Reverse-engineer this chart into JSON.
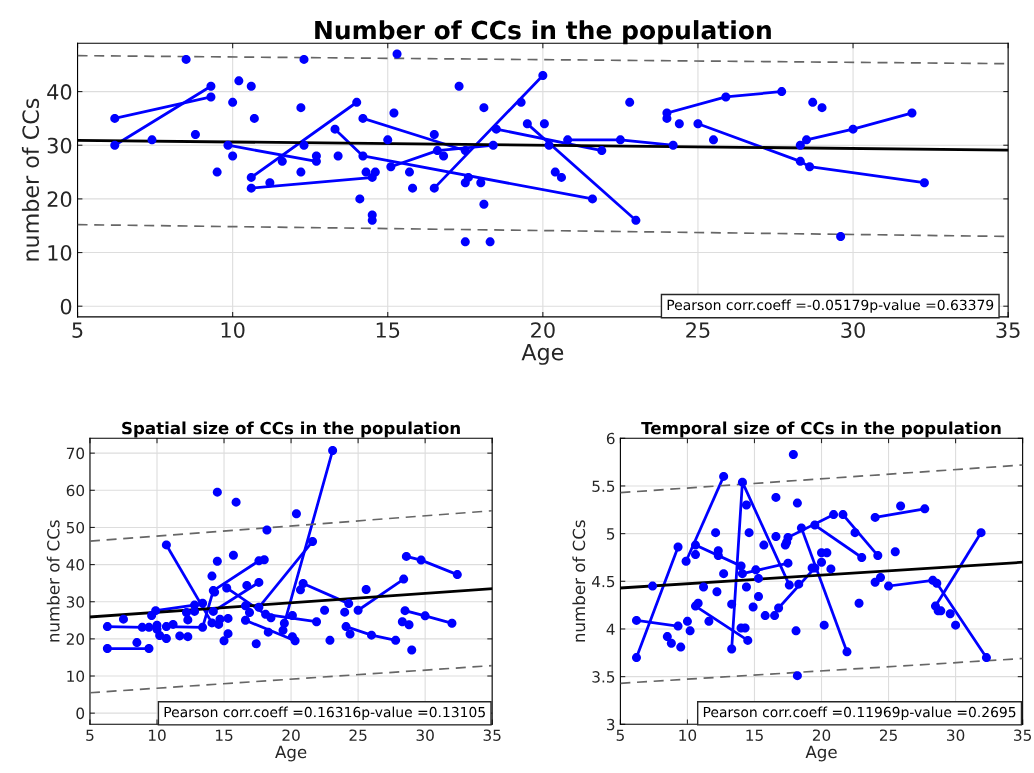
{
  "chart_data": [
    {
      "type": "scatter",
      "title": "Number of CCs in the population",
      "xlabel": "Age",
      "ylabel": "number of CCs",
      "xlim": [
        5,
        35
      ],
      "ylim": [
        -2,
        49
      ],
      "xticks": [
        5,
        10,
        15,
        20,
        25,
        30,
        35
      ],
      "yticks": [
        0,
        10,
        20,
        30,
        40
      ],
      "grid": true,
      "annotations": [
        "Pearson corr.coeff =-0.05179p-value =0.63379"
      ],
      "series": [
        {
          "type": "line",
          "color": "#0000ff",
          "line_style": "solid",
          "x": [
            6.2,
            9.3
          ],
          "values": [
            35,
            39
          ]
        },
        {
          "type": "line",
          "color": "#0000ff",
          "line_style": "solid",
          "x": [
            6.2,
            9.3
          ],
          "values": [
            30,
            41
          ]
        },
        {
          "type": "line",
          "color": "#0000ff",
          "line_style": "solid",
          "x": [
            9.85,
            12.7
          ],
          "values": [
            30,
            27
          ]
        },
        {
          "type": "line",
          "color": "#0000ff",
          "line_style": "solid",
          "x": [
            10.6,
            14
          ],
          "values": [
            24,
            38
          ]
        },
        {
          "type": "line",
          "color": "#0000ff",
          "line_style": "solid",
          "x": [
            10.6,
            14.5
          ],
          "values": [
            22,
            24
          ]
        },
        {
          "type": "line",
          "color": "#0000ff",
          "line_style": "solid",
          "x": [
            13.3,
            14.2,
            21.6
          ],
          "values": [
            33,
            28,
            20
          ]
        },
        {
          "type": "line",
          "color": "#0000ff",
          "line_style": "solid",
          "x": [
            14.2,
            17.5
          ],
          "values": [
            35,
            29
          ]
        },
        {
          "type": "line",
          "color": "#0000ff",
          "line_style": "solid",
          "x": [
            15.1,
            16.6,
            18.4
          ],
          "values": [
            26,
            29,
            30
          ]
        },
        {
          "type": "line",
          "color": "#0000ff",
          "line_style": "solid",
          "x": [
            16.5,
            20
          ],
          "values": [
            22,
            43
          ]
        },
        {
          "type": "line",
          "color": "#0000ff",
          "line_style": "solid",
          "x": [
            18.5,
            21.9
          ],
          "values": [
            33,
            29
          ]
        },
        {
          "type": "line",
          "color": "#0000ff",
          "line_style": "solid",
          "x": [
            20.8,
            22.5,
            24.2
          ],
          "values": [
            31,
            31,
            30
          ]
        },
        {
          "type": "line",
          "color": "#0000ff",
          "line_style": "solid",
          "x": [
            19.5,
            23
          ],
          "values": [
            34,
            16
          ]
        },
        {
          "type": "line",
          "color": "#0000ff",
          "line_style": "solid",
          "x": [
            24,
            25.9,
            27.7
          ],
          "values": [
            36,
            39,
            40
          ]
        },
        {
          "type": "line",
          "color": "#0000ff",
          "line_style": "solid",
          "x": [
            25,
            28.3,
            28.6,
            32.3
          ],
          "values": [
            34,
            27,
            26,
            23
          ]
        },
        {
          "type": "line",
          "color": "#0000ff",
          "line_style": "solid",
          "x": [
            28.3,
            28.5,
            30,
            31.9
          ],
          "values": [
            30,
            31,
            33,
            36
          ]
        },
        {
          "type": "scatter",
          "color": "#0000ff",
          "marker": "circle",
          "x": [
            6.2,
            6.2,
            7.4,
            8.5,
            8.8,
            9.3,
            9.3,
            9.5,
            10,
            10,
            9.85,
            10.2,
            10.6,
            10.7,
            10.6,
            10.6,
            11.2,
            11.6,
            12.2,
            12.3,
            12.2,
            12.3,
            12.7,
            12.7,
            13.4,
            13.3,
            14,
            14.1,
            14.2,
            14.2,
            14.3,
            14.5,
            14.5,
            14.5,
            14.6,
            15,
            15.2,
            15.3,
            15.1,
            15.7,
            15.8,
            16.5,
            16.6,
            16.8,
            16.5,
            17.3,
            17.5,
            17.6,
            17.5,
            17.5,
            18,
            18.1,
            18.1,
            18.3,
            18.4,
            18.5,
            19.3,
            19.5,
            20,
            20.05,
            20.2,
            20.4,
            20.6,
            20.8,
            21.6,
            21.9,
            22.5,
            22.8,
            23,
            24,
            24,
            24.2,
            24.4,
            25,
            25.5,
            25.9,
            27.7,
            28.3,
            28.3,
            28.5,
            28.6,
            28.7,
            29,
            29.6,
            30,
            31.9,
            32.3
          ],
          "values": [
            35,
            30,
            31,
            46,
            32,
            41,
            39,
            25,
            38,
            28,
            30,
            42,
            41,
            35,
            24,
            22,
            23,
            27,
            25,
            46,
            37,
            30,
            28,
            27,
            28,
            33,
            38,
            20,
            35,
            28,
            25,
            17,
            16,
            24,
            25,
            31,
            36,
            47,
            26,
            25,
            22,
            32,
            29,
            28,
            22,
            41,
            29,
            24,
            23,
            12,
            23,
            37,
            19,
            12,
            30,
            33,
            38,
            34,
            43,
            34,
            30,
            25,
            24,
            31,
            20,
            29,
            31,
            38,
            16,
            36,
            35,
            30,
            34,
            34,
            31,
            39,
            40,
            30,
            27,
            31,
            26,
            38,
            37,
            13,
            33,
            36,
            23
          ]
        },
        {
          "type": "line",
          "color": "#000000",
          "line_style": "solid",
          "x": [
            5,
            35
          ],
          "values": [
            30.9,
            29.1
          ]
        },
        {
          "type": "line",
          "color": "#666666",
          "line_style": "dashed",
          "x": [
            5,
            35
          ],
          "values": [
            46.7,
            45.2
          ]
        },
        {
          "type": "line",
          "color": "#666666",
          "line_style": "dashed",
          "x": [
            5,
            35
          ],
          "values": [
            15.2,
            13.0
          ]
        }
      ]
    },
    {
      "type": "scatter",
      "title": "Spatial size of CCs in the population",
      "xlabel": "Age",
      "ylabel": "number of CCs",
      "xlim": [
        5,
        35
      ],
      "ylim": [
        -3,
        74
      ],
      "xticks": [
        5,
        10,
        15,
        20,
        25,
        30,
        35
      ],
      "yticks": [
        0,
        10,
        20,
        30,
        40,
        50,
        60,
        70
      ],
      "grid": true,
      "annotations": [
        "Pearson corr.coeff =0.16316p-value =0.13105"
      ],
      "series": [
        {
          "type": "line",
          "color": "#0000ff",
          "line_style": "solid",
          "x": [
            6.3,
            8.9
          ],
          "values": [
            23.3,
            23.1
          ]
        },
        {
          "type": "line",
          "color": "#0000ff",
          "line_style": "solid",
          "x": [
            6.3,
            9.4
          ],
          "values": [
            17.4,
            17.4
          ]
        },
        {
          "type": "line",
          "color": "#0000ff",
          "line_style": "solid",
          "x": [
            9.9,
            12.8
          ],
          "values": [
            27.6,
            29.1
          ]
        },
        {
          "type": "line",
          "color": "#0000ff",
          "line_style": "solid",
          "x": [
            10.7,
            13.4,
            14.2,
            17.6
          ],
          "values": [
            23.3,
            23.1,
            33,
            41
          ]
        },
        {
          "type": "line",
          "color": "#0000ff",
          "line_style": "solid",
          "x": [
            10.7,
            14.1
          ],
          "values": [
            45.3,
            24.3
          ]
        },
        {
          "type": "line",
          "color": "#0000ff",
          "line_style": "solid",
          "x": [
            14.2,
            17.6
          ],
          "values": [
            27.4,
            35.2
          ]
        },
        {
          "type": "line",
          "color": "#0000ff",
          "line_style": "solid",
          "x": [
            15.2,
            18.1,
            21.9
          ],
          "values": [
            33.7,
            26.6,
            24.6
          ]
        },
        {
          "type": "line",
          "color": "#0000ff",
          "line_style": "solid",
          "x": [
            16.6,
            20.3
          ],
          "values": [
            25,
            19.5
          ]
        },
        {
          "type": "line",
          "color": "#0000ff",
          "line_style": "solid",
          "x": [
            17.6,
            21.6
          ],
          "values": [
            28.5,
            46.2
          ]
        },
        {
          "type": "line",
          "color": "#0000ff",
          "line_style": "solid",
          "x": [
            19.5,
            23.1
          ],
          "values": [
            24.2,
            70.7
          ]
        },
        {
          "type": "line",
          "color": "#0000ff",
          "line_style": "solid",
          "x": [
            20.9,
            24.3
          ],
          "values": [
            34.9,
            29.5
          ]
        },
        {
          "type": "line",
          "color": "#0000ff",
          "line_style": "solid",
          "x": [
            25,
            28.4
          ],
          "values": [
            27.7,
            36.1
          ]
        },
        {
          "type": "line",
          "color": "#0000ff",
          "line_style": "solid",
          "x": [
            24.1,
            26,
            27.8
          ],
          "values": [
            23.3,
            21,
            19.6
          ]
        },
        {
          "type": "line",
          "color": "#0000ff",
          "line_style": "solid",
          "x": [
            28.6,
            29.7,
            32.4
          ],
          "values": [
            42.2,
            41.2,
            37.3
          ]
        },
        {
          "type": "line",
          "color": "#0000ff",
          "line_style": "solid",
          "x": [
            28.5,
            30,
            32
          ],
          "values": [
            27.6,
            26.2,
            24.2
          ]
        },
        {
          "type": "scatter",
          "color": "#0000ff",
          "marker": "circle",
          "x": [
            6.3,
            6.3,
            7.5,
            8.5,
            8.9,
            9.4,
            9.4,
            9.6,
            9.9,
            10,
            10,
            10.2,
            10.7,
            10.7,
            10.7,
            11.2,
            11.7,
            12.2,
            12.3,
            12.3,
            12.8,
            12.8,
            13.4,
            13.4,
            14.1,
            14.1,
            14.2,
            14.2,
            14.3,
            14.5,
            14.5,
            14.7,
            14.6,
            15,
            15.2,
            15.3,
            15.3,
            15.7,
            15.9,
            16.7,
            16.6,
            16.6,
            16.9,
            17.4,
            17.6,
            17.6,
            17.6,
            18,
            18.2,
            18.1,
            18.3,
            18.5,
            19.4,
            19.5,
            20.1,
            20.1,
            20.3,
            20.4,
            20.7,
            20.9,
            21.6,
            21.9,
            22.5,
            22.9,
            23.1,
            24,
            24.1,
            24.3,
            24.4,
            25,
            25.6,
            26,
            27.8,
            28.3,
            28.4,
            28.5,
            28.6,
            28.8,
            29,
            29.7,
            30,
            32,
            32.4
          ],
          "values": [
            23.3,
            17.4,
            25.3,
            19,
            23.1,
            23.1,
            17.4,
            26.3,
            27.6,
            23.7,
            22.6,
            20.9,
            45.3,
            20.1,
            23.3,
            23.9,
            20.8,
            27.1,
            25.1,
            20.6,
            29.1,
            27.4,
            29.6,
            23.1,
            24.3,
            36.9,
            33,
            27.4,
            32.6,
            59.5,
            40.9,
            25.3,
            23.9,
            19.5,
            33.7,
            25.5,
            21.4,
            42.5,
            56.8,
            34.4,
            28.9,
            25,
            27.1,
            18.7,
            35.2,
            41,
            28.5,
            41.3,
            49.3,
            26.6,
            21.8,
            25.7,
            22.3,
            24.2,
            26.3,
            20.6,
            19.5,
            53.7,
            33.2,
            34.9,
            46.2,
            24.6,
            27.7,
            19.6,
            70.7,
            27.2,
            23.3,
            29.5,
            21.3,
            27.7,
            33.3,
            21,
            19.6,
            24.6,
            36.1,
            27.6,
            42.2,
            23.8,
            17,
            41.2,
            26.2,
            24.2,
            37.3
          ]
        },
        {
          "type": "line",
          "color": "#000000",
          "line_style": "solid",
          "x": [
            5,
            35
          ],
          "values": [
            25.9,
            33.5
          ]
        },
        {
          "type": "line",
          "color": "#666666",
          "line_style": "dashed",
          "x": [
            5,
            35
          ],
          "values": [
            46.3,
            54.5
          ]
        },
        {
          "type": "line",
          "color": "#666666",
          "line_style": "dashed",
          "x": [
            5,
            35
          ],
          "values": [
            5.5,
            12.8
          ]
        }
      ]
    },
    {
      "type": "scatter",
      "title": "Temporal size of CCs in the population",
      "xlabel": "Age",
      "ylabel": "number of CCs",
      "xlim": [
        5,
        35
      ],
      "ylim": [
        3,
        6
      ],
      "xticks": [
        5,
        10,
        15,
        20,
        25,
        30,
        35
      ],
      "yticks": [
        3,
        3.5,
        4,
        4.5,
        5,
        5.5,
        6
      ],
      "grid": true,
      "annotations": [
        "Pearson corr.coeff =0.11969p-value =0.2695"
      ],
      "series": [
        {
          "type": "line",
          "color": "#0000ff",
          "line_style": "solid",
          "x": [
            6.2,
            9.3
          ],
          "values": [
            4.09,
            4.03
          ]
        },
        {
          "type": "line",
          "color": "#0000ff",
          "line_style": "solid",
          "x": [
            6.2,
            9.3
          ],
          "values": [
            3.7,
            4.86
          ]
        },
        {
          "type": "line",
          "color": "#0000ff",
          "line_style": "solid",
          "x": [
            9.9,
            12.7
          ],
          "values": [
            4.71,
            5.6
          ]
        },
        {
          "type": "line",
          "color": "#0000ff",
          "line_style": "solid",
          "x": [
            10.6,
            14
          ],
          "values": [
            4.88,
            4.66
          ]
        },
        {
          "type": "line",
          "color": "#0000ff",
          "line_style": "solid",
          "x": [
            10.6,
            14.5
          ],
          "values": [
            4.24,
            3.88
          ]
        },
        {
          "type": "line",
          "color": "#0000ff",
          "line_style": "solid",
          "x": [
            13.3,
            14.1,
            17.6
          ],
          "values": [
            3.79,
            5.54,
            4.46
          ]
        },
        {
          "type": "line",
          "color": "#0000ff",
          "line_style": "solid",
          "x": [
            14.1,
            17.5
          ],
          "values": [
            4.58,
            4.69
          ]
        },
        {
          "type": "line",
          "color": "#0000ff",
          "line_style": "solid",
          "x": [
            16.8,
            19.5
          ],
          "values": [
            4.22,
            4.64
          ]
        },
        {
          "type": "line",
          "color": "#0000ff",
          "line_style": "solid",
          "x": [
            17.5,
            20.9
          ],
          "values": [
            4.96,
            5.2
          ]
        },
        {
          "type": "line",
          "color": "#0000ff",
          "line_style": "solid",
          "x": [
            18.5,
            21.9
          ],
          "values": [
            5.06,
            3.76
          ]
        },
        {
          "type": "line",
          "color": "#0000ff",
          "line_style": "solid",
          "x": [
            19.5,
            23
          ],
          "values": [
            5.09,
            4.75
          ]
        },
        {
          "type": "line",
          "color": "#0000ff",
          "line_style": "solid",
          "x": [
            21.6,
            24.2
          ],
          "values": [
            5.2,
            4.77
          ]
        },
        {
          "type": "line",
          "color": "#0000ff",
          "line_style": "solid",
          "x": [
            24,
            27.7
          ],
          "values": [
            5.17,
            5.26
          ]
        },
        {
          "type": "line",
          "color": "#0000ff",
          "line_style": "solid",
          "x": [
            25,
            28.3,
            28.6,
            32.3
          ],
          "values": [
            4.45,
            4.51,
            4.48,
            3.7
          ]
        },
        {
          "type": "line",
          "color": "#0000ff",
          "line_style": "solid",
          "x": [
            28.5,
            31.9
          ],
          "values": [
            4.24,
            5.01
          ]
        },
        {
          "type": "scatter",
          "color": "#0000ff",
          "marker": "circle",
          "x": [
            6.2,
            6.2,
            7.4,
            8.5,
            8.8,
            9.3,
            9.3,
            9.5,
            9.9,
            10,
            10.2,
            10.6,
            10.6,
            10.6,
            10.8,
            11.2,
            11.6,
            12.1,
            12.3,
            12.3,
            12.2,
            12.7,
            12.7,
            13.3,
            13.3,
            14,
            14.1,
            14.1,
            14,
            14.3,
            14.5,
            14.4,
            14.4,
            14.6,
            14.9,
            15.3,
            15.3,
            15.1,
            15.7,
            15.8,
            16.5,
            16.6,
            16.6,
            16.8,
            17.3,
            17.4,
            17.5,
            17.5,
            17.6,
            17.9,
            18.1,
            18.2,
            18.3,
            18.2,
            18.5,
            19.3,
            19.5,
            19.5,
            20,
            20,
            20.4,
            20.2,
            20.7,
            20.9,
            21.6,
            21.9,
            22.5,
            22.8,
            23,
            24,
            24,
            24.2,
            24.4,
            25,
            25.5,
            25.9,
            27.7,
            28.3,
            28.6,
            28.5,
            28.7,
            28.9,
            29.6,
            30,
            31.9,
            32.3
          ],
          "values": [
            3.7,
            4.09,
            4.45,
            3.92,
            3.85,
            4.86,
            4.03,
            3.81,
            4.71,
            4.08,
            3.98,
            4.78,
            4.88,
            4.24,
            4.27,
            4.44,
            4.08,
            5.01,
            4.82,
            4.77,
            4.39,
            4.58,
            5.6,
            3.79,
            4.26,
            4.66,
            4.58,
            5.54,
            4.01,
            4.01,
            3.88,
            4.44,
            5.3,
            5.01,
            4.23,
            4.53,
            4.34,
            4.62,
            4.88,
            4.14,
            4.14,
            4.97,
            5.38,
            4.22,
            4.88,
            4.91,
            4.96,
            4.69,
            4.46,
            5.83,
            3.98,
            5.32,
            4.47,
            3.51,
            5.06,
            4.64,
            5.09,
            4.64,
            4.7,
            4.8,
            4.8,
            4.04,
            4.63,
            5.2,
            5.2,
            3.76,
            5.01,
            4.27,
            4.75,
            5.17,
            4.49,
            4.77,
            4.54,
            4.45,
            4.81,
            5.29,
            5.26,
            4.51,
            4.48,
            4.24,
            4.19,
            4.19,
            4.16,
            4.04,
            5.01,
            3.7
          ]
        },
        {
          "type": "line",
          "color": "#000000",
          "line_style": "solid",
          "x": [
            5,
            35
          ],
          "values": [
            4.43,
            4.7
          ]
        },
        {
          "type": "line",
          "color": "#666666",
          "line_style": "dashed",
          "x": [
            5,
            35
          ],
          "values": [
            5.43,
            5.72
          ]
        },
        {
          "type": "line",
          "color": "#666666",
          "line_style": "dashed",
          "x": [
            5,
            35
          ],
          "values": [
            3.43,
            3.69
          ]
        }
      ]
    }
  ]
}
